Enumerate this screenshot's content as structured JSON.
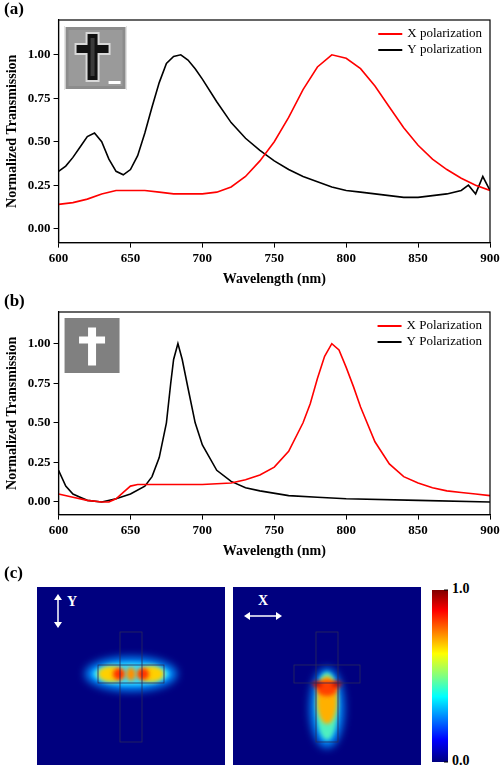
{
  "chart_data": [
    {
      "panel": "(a)",
      "type": "line",
      "x_label": "Wavelength (nm)",
      "y_label": "Normalized Transmission",
      "xlim": [
        600,
        900
      ],
      "xticks": [
        600,
        650,
        700,
        750,
        800,
        850,
        900
      ],
      "ylim": [
        -0.08,
        1.2
      ],
      "yticks": [
        {
          "value": 0,
          "label": "0.00"
        },
        {
          "value": 0.25,
          "label": "0.25"
        },
        {
          "value": 0.5,
          "label": "0.50"
        },
        {
          "value": 0.75,
          "label": "0.75"
        },
        {
          "value": 1,
          "label": "1.00"
        }
      ],
      "grid": false,
      "legend": "top-right",
      "series": [
        {
          "name": "X polarization",
          "color": "#ff0000",
          "x": [
            600,
            610,
            620,
            630,
            640,
            650,
            660,
            670,
            680,
            690,
            700,
            710,
            720,
            730,
            740,
            750,
            760,
            770,
            780,
            790,
            800,
            810,
            820,
            830,
            840,
            850,
            860,
            870,
            880,
            890,
            900
          ],
          "values": [
            0.14,
            0.15,
            0.17,
            0.2,
            0.22,
            0.22,
            0.22,
            0.21,
            0.2,
            0.2,
            0.2,
            0.21,
            0.24,
            0.3,
            0.39,
            0.5,
            0.64,
            0.8,
            0.93,
            1.0,
            0.98,
            0.92,
            0.82,
            0.7,
            0.58,
            0.48,
            0.4,
            0.34,
            0.29,
            0.25,
            0.22
          ]
        },
        {
          "name": "Y polarization",
          "color": "#000000",
          "x": [
            600,
            605,
            610,
            615,
            620,
            625,
            630,
            635,
            640,
            645,
            650,
            655,
            660,
            665,
            670,
            675,
            680,
            685,
            690,
            695,
            700,
            710,
            720,
            730,
            740,
            750,
            760,
            770,
            780,
            790,
            800,
            810,
            820,
            830,
            840,
            850,
            860,
            870,
            880,
            885,
            890,
            895,
            900
          ],
          "values": [
            0.33,
            0.36,
            0.41,
            0.47,
            0.53,
            0.55,
            0.5,
            0.4,
            0.33,
            0.31,
            0.34,
            0.42,
            0.55,
            0.7,
            0.84,
            0.95,
            0.99,
            1.0,
            0.97,
            0.92,
            0.86,
            0.73,
            0.61,
            0.52,
            0.45,
            0.39,
            0.34,
            0.3,
            0.27,
            0.24,
            0.22,
            0.21,
            0.2,
            0.19,
            0.18,
            0.18,
            0.19,
            0.2,
            0.22,
            0.25,
            0.2,
            0.3,
            0.22
          ]
        }
      ]
    },
    {
      "panel": "(b)",
      "type": "line",
      "x_label": "Wavelength (nm)",
      "y_label": "Normalized Transmission",
      "xlim": [
        600,
        900
      ],
      "xticks": [
        600,
        650,
        700,
        750,
        800,
        850,
        900
      ],
      "ylim": [
        -0.08,
        1.2
      ],
      "yticks": [
        {
          "value": 0,
          "label": "0.00"
        },
        {
          "value": 0.25,
          "label": "0.25"
        },
        {
          "value": 0.5,
          "label": "0.50"
        },
        {
          "value": 0.75,
          "label": "0.75"
        },
        {
          "value": 1,
          "label": "1.00"
        }
      ],
      "grid": false,
      "legend": "top-right",
      "series": [
        {
          "name": "X Polarization",
          "color": "#ff0000",
          "x": [
            600,
            610,
            620,
            630,
            635,
            640,
            645,
            650,
            655,
            660,
            680,
            700,
            720,
            730,
            740,
            750,
            760,
            770,
            775,
            780,
            785,
            790,
            795,
            800,
            805,
            810,
            820,
            830,
            840,
            850,
            860,
            870,
            880,
            890,
            900
          ],
          "values": [
            0.05,
            0.03,
            0.01,
            0.0,
            0.0,
            0.02,
            0.06,
            0.1,
            0.11,
            0.11,
            0.11,
            0.11,
            0.12,
            0.14,
            0.17,
            0.22,
            0.32,
            0.5,
            0.62,
            0.78,
            0.92,
            1.0,
            0.96,
            0.85,
            0.73,
            0.6,
            0.38,
            0.24,
            0.16,
            0.12,
            0.09,
            0.07,
            0.06,
            0.05,
            0.04
          ]
        },
        {
          "name": "Y Polarization",
          "color": "#000000",
          "x": [
            600,
            605,
            610,
            615,
            620,
            630,
            640,
            650,
            660,
            665,
            670,
            675,
            678,
            680,
            683,
            686,
            690,
            695,
            700,
            710,
            720,
            730,
            740,
            760,
            780,
            800,
            850,
            900
          ],
          "values": [
            0.2,
            0.1,
            0.05,
            0.03,
            0.01,
            0.0,
            0.02,
            0.05,
            0.1,
            0.16,
            0.28,
            0.5,
            0.75,
            0.9,
            1.0,
            0.9,
            0.72,
            0.5,
            0.36,
            0.2,
            0.13,
            0.09,
            0.07,
            0.04,
            0.03,
            0.02,
            0.01,
            0.0
          ]
        }
      ]
    }
  ],
  "field_maps": {
    "panel": "(c)",
    "maps": [
      {
        "polarization": "Y"
      },
      {
        "polarization": "X"
      }
    ],
    "colorbar": {
      "range": [
        0,
        1
      ],
      "ticks": [
        {
          "value": 1,
          "label": "1.0"
        },
        {
          "value": 0,
          "label": "0.0"
        }
      ]
    }
  }
}
